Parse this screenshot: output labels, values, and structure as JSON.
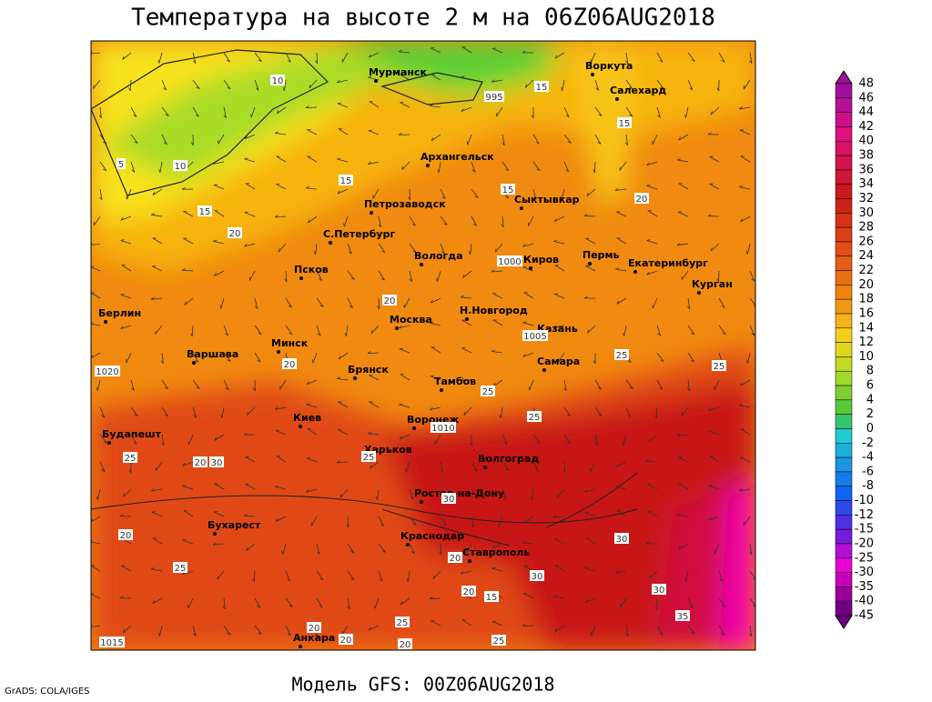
{
  "title": "Температура на высоте 2 м на 06Z06AUG2018",
  "footer": {
    "model": "Модель GFS: 00Z06AUG2018",
    "credit": "GrADS: COLA/IGES"
  },
  "cities": [
    "Мурманск",
    "Воркута",
    "Салехард",
    "Архангельск",
    "Петрозаводск",
    "Сыктывкар",
    "С.Петербург",
    "Вологда",
    "Киров",
    "Пермь",
    "Екатеринбург",
    "Курган",
    "Псков",
    "Берлин",
    "Москва",
    "Н.Новгород",
    "Казань",
    "Минск",
    "Варшава",
    "Самара",
    "Брянск",
    "Тамбов",
    "Киев",
    "Воронеж",
    "Будапешт",
    "Харьков",
    "Волгоград",
    "Ростов-на-Дону",
    "Бухарест",
    "Краснодар",
    "Ставрополь",
    "Анкара"
  ],
  "contour_labels": [
    "10",
    "5",
    "10",
    "15",
    "15",
    "15",
    "15",
    "15",
    "20",
    "20",
    "20",
    "20",
    "20",
    "20",
    "25",
    "25",
    "25",
    "25",
    "25",
    "25",
    "30",
    "30",
    "30",
    "30",
    "35",
    "15",
    "20",
    "20",
    "25",
    "20",
    "25",
    "30",
    "20",
    "20",
    "25",
    "995",
    "1000",
    "1005",
    "1010",
    "1020",
    "1015"
  ],
  "colorbar": {
    "labels": [
      48,
      46,
      44,
      42,
      40,
      38,
      36,
      34,
      32,
      30,
      28,
      26,
      24,
      22,
      20,
      18,
      16,
      14,
      12,
      10,
      8,
      6,
      4,
      2,
      0,
      -2,
      -4,
      -6,
      -8,
      -10,
      -12,
      -15,
      -20,
      -25,
      -30,
      -35,
      -40,
      -45
    ]
  }
}
